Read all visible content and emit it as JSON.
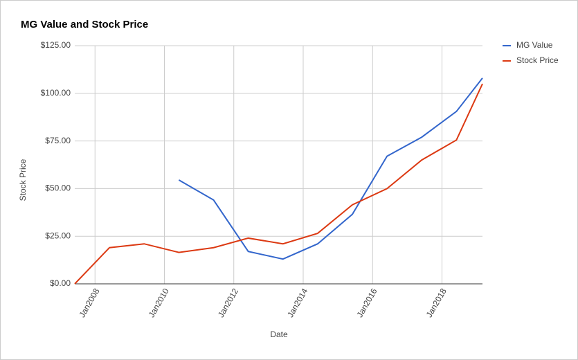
{
  "chart_data": {
    "type": "line",
    "title": "MG Value and Stock Price",
    "x_label": "Date",
    "y_label": "Stock Price",
    "x": [
      "2007-06",
      "2008-06",
      "2009-06",
      "2010-06",
      "2011-06",
      "2012-06",
      "2013-06",
      "2014-06",
      "2015-06",
      "2016-06",
      "2017-06",
      "2018-06",
      "2019-03"
    ],
    "series": [
      {
        "name": "MG Value",
        "color": "#3366cc",
        "values": [
          null,
          null,
          null,
          54.5,
          44,
          17,
          13,
          21,
          36.5,
          67,
          77,
          90.5,
          108
        ]
      },
      {
        "name": "Stock Price",
        "color": "#dc3912",
        "values": [
          0,
          19,
          21,
          16.5,
          19,
          24,
          21,
          26.5,
          41.5,
          50,
          65,
          75.5,
          105
        ]
      }
    ],
    "xlim": [
      "2007-06",
      "2019-03"
    ],
    "xticks": [
      {
        "value": "2008-01",
        "label": "Jan2008"
      },
      {
        "value": "2010-01",
        "label": "Jan2010"
      },
      {
        "value": "2012-01",
        "label": "Jan2012"
      },
      {
        "value": "2014-01",
        "label": "Jan2014"
      },
      {
        "value": "2016-01",
        "label": "Jan2016"
      },
      {
        "value": "2018-01",
        "label": "Jan2018"
      }
    ],
    "ylim": [
      0,
      125
    ],
    "yticks": [
      {
        "value": 0,
        "label": "$0.00"
      },
      {
        "value": 25,
        "label": "$25.00"
      },
      {
        "value": 50,
        "label": "$50.00"
      },
      {
        "value": 75,
        "label": "$75.00"
      },
      {
        "value": 100,
        "label": "$100.00"
      },
      {
        "value": 125,
        "label": "$125.00"
      }
    ],
    "grid": true,
    "legend": "right"
  }
}
